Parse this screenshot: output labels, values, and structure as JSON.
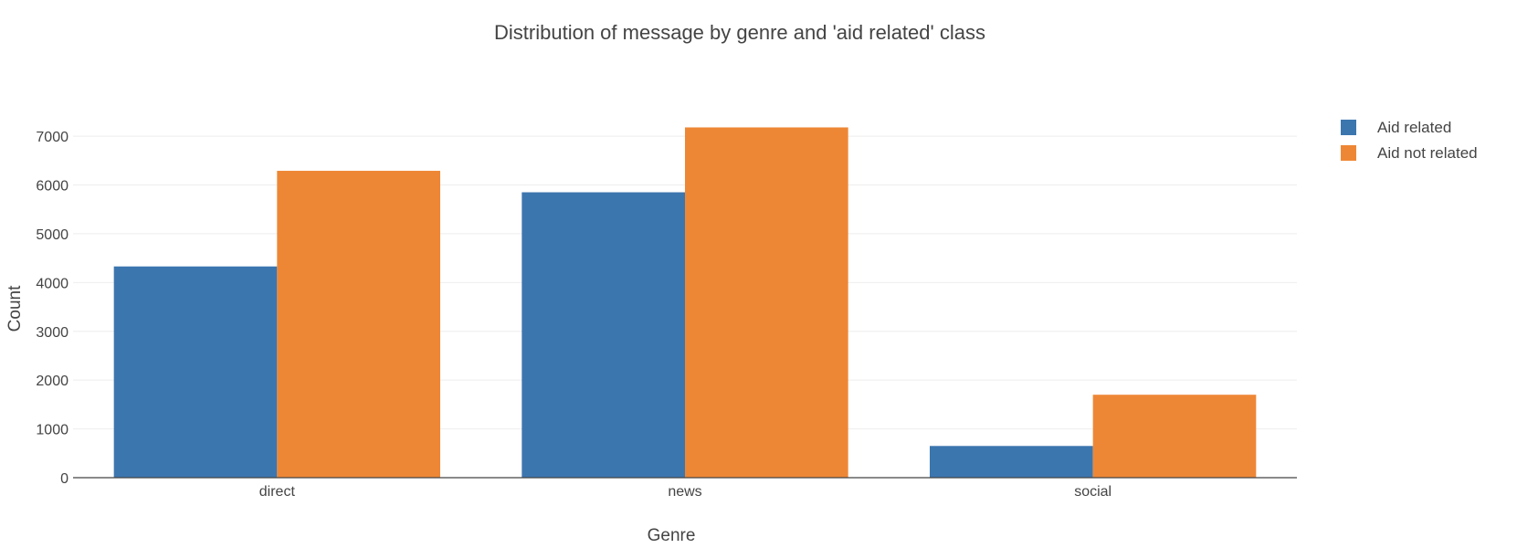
{
  "chart_data": {
    "type": "bar",
    "title": "Distribution of message by genre and 'aid related' class",
    "xlabel": "Genre",
    "ylabel": "Count",
    "categories": [
      "direct",
      "news",
      "social"
    ],
    "series": [
      {
        "name": "Aid related",
        "values": [
          4330,
          5850,
          650
        ],
        "color": "#3c76af"
      },
      {
        "name": "Aid not related",
        "values": [
          6290,
          7180,
          1700
        ],
        "color": "#ee8735"
      }
    ],
    "ylim": [
      0,
      7470
    ],
    "yticks": [
      0,
      1000,
      2000,
      3000,
      4000,
      5000,
      6000,
      7000
    ],
    "ytick_labels": [
      "0",
      "1000",
      "2000",
      "3000",
      "4000",
      "5000",
      "6000",
      "7000"
    ],
    "grid": true,
    "legend_position": "top-right"
  }
}
